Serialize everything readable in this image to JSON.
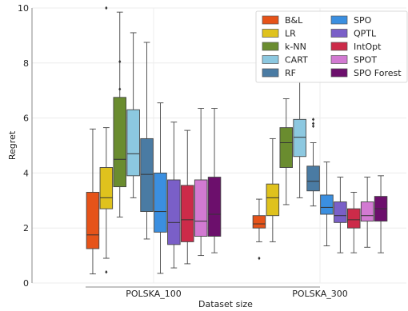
{
  "chart_data": {
    "type": "box",
    "xlabel": "Dataset size",
    "ylabel": "Regret",
    "categories": [
      "POLSKA_100",
      "POLSKA_300"
    ],
    "ylim": [
      0,
      10
    ],
    "yticks": [
      0,
      2,
      4,
      6,
      8,
      10
    ],
    "grid": true,
    "legend": {
      "placement": "top-right",
      "columns": 2
    },
    "series": [
      {
        "name": "B&L",
        "color": "#e65319",
        "stats": [
          {
            "whislo": 0.33,
            "q1": 1.25,
            "med": 1.75,
            "q3": 3.3,
            "whishi": 5.6,
            "fliers": []
          },
          {
            "whislo": 1.5,
            "q1": 2.0,
            "med": 2.15,
            "q3": 2.45,
            "whishi": 3.05,
            "fliers": [
              0.9
            ]
          }
        ]
      },
      {
        "name": "LR",
        "color": "#dfc21d",
        "stats": [
          {
            "whislo": 0.9,
            "q1": 2.7,
            "med": 3.1,
            "q3": 4.2,
            "whishi": 5.65,
            "fliers": [
              0.4,
              10.0
            ]
          },
          {
            "whislo": 1.5,
            "q1": 2.45,
            "med": 3.1,
            "q3": 3.6,
            "whishi": 5.25,
            "fliers": []
          }
        ]
      },
      {
        "name": "k-NN",
        "color": "#6a8c2f",
        "stats": [
          {
            "whislo": 2.4,
            "q1": 3.5,
            "med": 4.5,
            "q3": 6.75,
            "whishi": 9.85,
            "fliers": [
              7.05,
              8.05
            ]
          },
          {
            "whislo": 2.85,
            "q1": 4.2,
            "med": 5.1,
            "q3": 5.65,
            "whishi": 6.7,
            "fliers": []
          }
        ]
      },
      {
        "name": "CART",
        "color": "#8cc8e0",
        "stats": [
          {
            "whislo": 3.1,
            "q1": 3.9,
            "med": 4.7,
            "q3": 6.3,
            "whishi": 9.1,
            "fliers": []
          },
          {
            "whislo": 3.1,
            "q1": 4.6,
            "med": 5.3,
            "q3": 5.95,
            "whishi": 7.3,
            "fliers": []
          }
        ]
      },
      {
        "name": "RF",
        "color": "#4a7ba3",
        "stats": [
          {
            "whislo": 1.6,
            "q1": 2.6,
            "med": 3.95,
            "q3": 5.25,
            "whishi": 8.75,
            "fliers": []
          },
          {
            "whislo": 2.8,
            "q1": 3.35,
            "med": 3.7,
            "q3": 4.25,
            "whishi": 5.1,
            "fliers": [
              5.7,
              5.8,
              5.95
            ]
          }
        ]
      },
      {
        "name": "SPO",
        "color": "#3b8fe0",
        "stats": [
          {
            "whislo": 0.35,
            "q1": 1.85,
            "med": 2.6,
            "q3": 4.0,
            "whishi": 6.55,
            "fliers": []
          },
          {
            "whislo": 1.35,
            "q1": 2.5,
            "med": 2.75,
            "q3": 3.2,
            "whishi": 4.4,
            "fliers": []
          }
        ]
      },
      {
        "name": "QPTL",
        "color": "#7a5fc8",
        "stats": [
          {
            "whislo": 0.55,
            "q1": 1.4,
            "med": 2.2,
            "q3": 3.75,
            "whishi": 5.85,
            "fliers": []
          },
          {
            "whislo": 1.1,
            "q1": 2.2,
            "med": 2.45,
            "q3": 2.95,
            "whishi": 3.85,
            "fliers": []
          }
        ]
      },
      {
        "name": "IntOpt",
        "color": "#cc2b49",
        "stats": [
          {
            "whislo": 0.7,
            "q1": 1.5,
            "med": 2.3,
            "q3": 3.55,
            "whishi": 5.55,
            "fliers": []
          },
          {
            "whislo": 1.1,
            "q1": 2.0,
            "med": 2.3,
            "q3": 2.7,
            "whishi": 3.3,
            "fliers": []
          }
        ]
      },
      {
        "name": "SPOT",
        "color": "#d27ad2",
        "stats": [
          {
            "whislo": 1.0,
            "q1": 1.7,
            "med": 2.25,
            "q3": 3.75,
            "whishi": 6.35,
            "fliers": []
          },
          {
            "whislo": 1.3,
            "q1": 2.25,
            "med": 2.45,
            "q3": 2.95,
            "whishi": 3.85,
            "fliers": []
          }
        ]
      },
      {
        "name": "SPO Forest",
        "color": "#6c0f6c",
        "stats": [
          {
            "whislo": 1.1,
            "q1": 1.7,
            "med": 2.5,
            "q3": 3.85,
            "whishi": 6.35,
            "fliers": []
          },
          {
            "whislo": 1.1,
            "q1": 2.25,
            "med": 2.7,
            "q3": 3.15,
            "whishi": 3.9,
            "fliers": []
          }
        ]
      }
    ]
  }
}
